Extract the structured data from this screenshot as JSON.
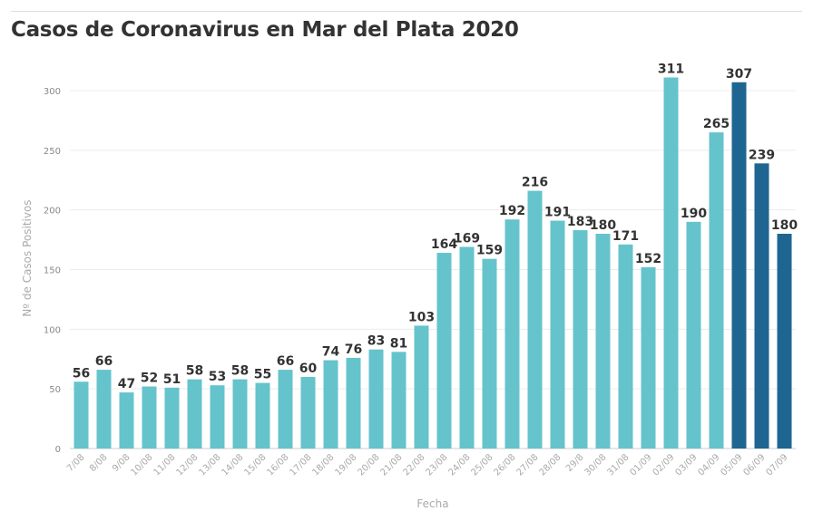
{
  "title": "Casos de Coronavirus en Mar del Plata 2020",
  "colors": {
    "primary": "#65c3cc",
    "highlight": "#1f6591",
    "grid": "#ececec",
    "text": "#333333"
  },
  "chart_data": {
    "type": "bar",
    "title": "Casos de Coronavirus en Mar del Plata 2020",
    "xlabel": "Fecha",
    "ylabel": "Nº de Casos Positivos",
    "ylim": [
      0,
      320
    ],
    "yticks": [
      0,
      50,
      100,
      150,
      200,
      250,
      300
    ],
    "grid": true,
    "categories": [
      "7/08",
      "8/08",
      "9/08",
      "10/08",
      "11/08",
      "12/08",
      "13/08",
      "14/08",
      "15/08",
      "16/08",
      "17/08",
      "18/08",
      "19/08",
      "20/08",
      "21/08",
      "22/08",
      "23/08",
      "24/08",
      "25/08",
      "26/08",
      "27/08",
      "28/08",
      "29/8",
      "30/08",
      "31/08",
      "01/09",
      "02/09",
      "03/09",
      "04/09",
      "05/09",
      "06/09",
      "07/09"
    ],
    "values": [
      56,
      66,
      47,
      52,
      51,
      58,
      53,
      58,
      55,
      66,
      60,
      74,
      76,
      83,
      81,
      103,
      164,
      169,
      159,
      192,
      216,
      191,
      183,
      180,
      171,
      152,
      311,
      190,
      265,
      307,
      239,
      180
    ],
    "highlight_from_index": 29
  }
}
